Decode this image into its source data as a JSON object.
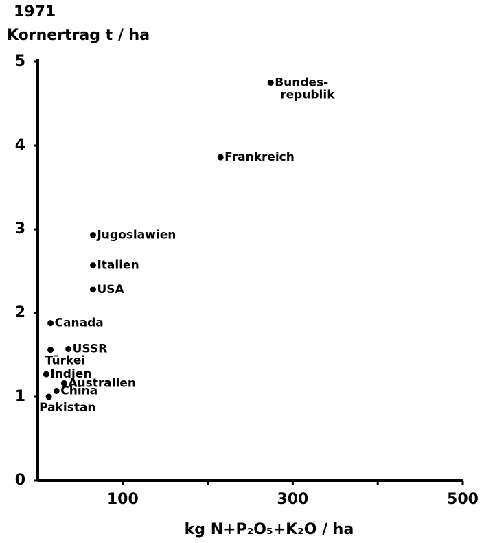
{
  "chart_data": {
    "type": "scatter",
    "title": "1971",
    "y_label": "Kornertrag t / ha",
    "x_label": "kg N+P₂O₅+K₂O / ha",
    "labels": [
      "Bundes-\nrepublik",
      "Frankreich",
      "Jugoslawien",
      "Italien",
      "USA",
      "Canada",
      "USSR",
      "Türkei",
      "Indien",
      "Australien",
      "China",
      "Pakistan"
    ],
    "x": [
      274,
      215,
      65,
      65,
      65,
      15,
      36,
      15,
      10,
      31,
      22,
      13
    ],
    "values": [
      4.75,
      3.86,
      2.93,
      2.57,
      2.28,
      1.88,
      1.57,
      1.56,
      1.27,
      1.16,
      1.07,
      1.0
    ],
    "color": "#000000",
    "xlim": [
      0,
      500
    ],
    "ylim": [
      0,
      5
    ],
    "xticks": [
      100,
      300,
      500
    ],
    "xminor_ticks": [
      200,
      400
    ],
    "yticks": [
      0,
      1,
      2,
      3,
      4,
      5
    ],
    "grid": false
  }
}
